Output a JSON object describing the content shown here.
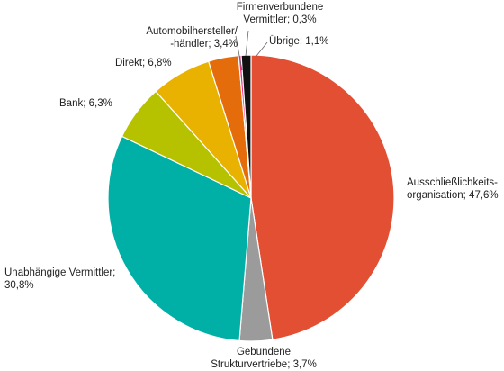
{
  "chart_data": {
    "type": "pie",
    "title": "",
    "start_angle_deg": 0,
    "direction": "clockwise",
    "slice_border_color": "#ffffff",
    "slices": [
      {
        "name": "Ausschließlichkeitsorganisation",
        "value": 47.6,
        "color": "#e24f33",
        "label_lines": [
          "Ausschließlichkeits-",
          "organisation; 47,6%"
        ]
      },
      {
        "name": "Gebundene Strukturvertriebe",
        "value": 3.7,
        "color": "#9b9b9b",
        "label_lines": [
          "Gebundene",
          "Strukturvertriebe; 3,7%"
        ]
      },
      {
        "name": "Unabhängige Vermittler",
        "value": 30.8,
        "color": "#00b0a6",
        "label_lines": [
          "Unabhängige Vermittler;",
          "30,8%"
        ]
      },
      {
        "name": "Bank",
        "value": 6.3,
        "color": "#b6c200",
        "label_lines": [
          "Bank; 6,3%"
        ]
      },
      {
        "name": "Direkt",
        "value": 6.8,
        "color": "#e9b200",
        "label_lines": [
          "Direkt; 6,8%"
        ]
      },
      {
        "name": "Automobilhersteller/-händler",
        "value": 3.4,
        "color": "#e46c0a",
        "label_lines": [
          "Automobilhersteller/",
          "-händler; 3,4%"
        ]
      },
      {
        "name": "Firmenverbundene Vermittler",
        "value": 0.3,
        "color": "#e8328c",
        "label_lines": [
          "Firmenverbundene",
          "Vermittler; 0,3%"
        ]
      },
      {
        "name": "Übrige",
        "value": 1.1,
        "color": "#111111",
        "label_lines": [
          "Übrige;  1,1%"
        ]
      }
    ]
  }
}
